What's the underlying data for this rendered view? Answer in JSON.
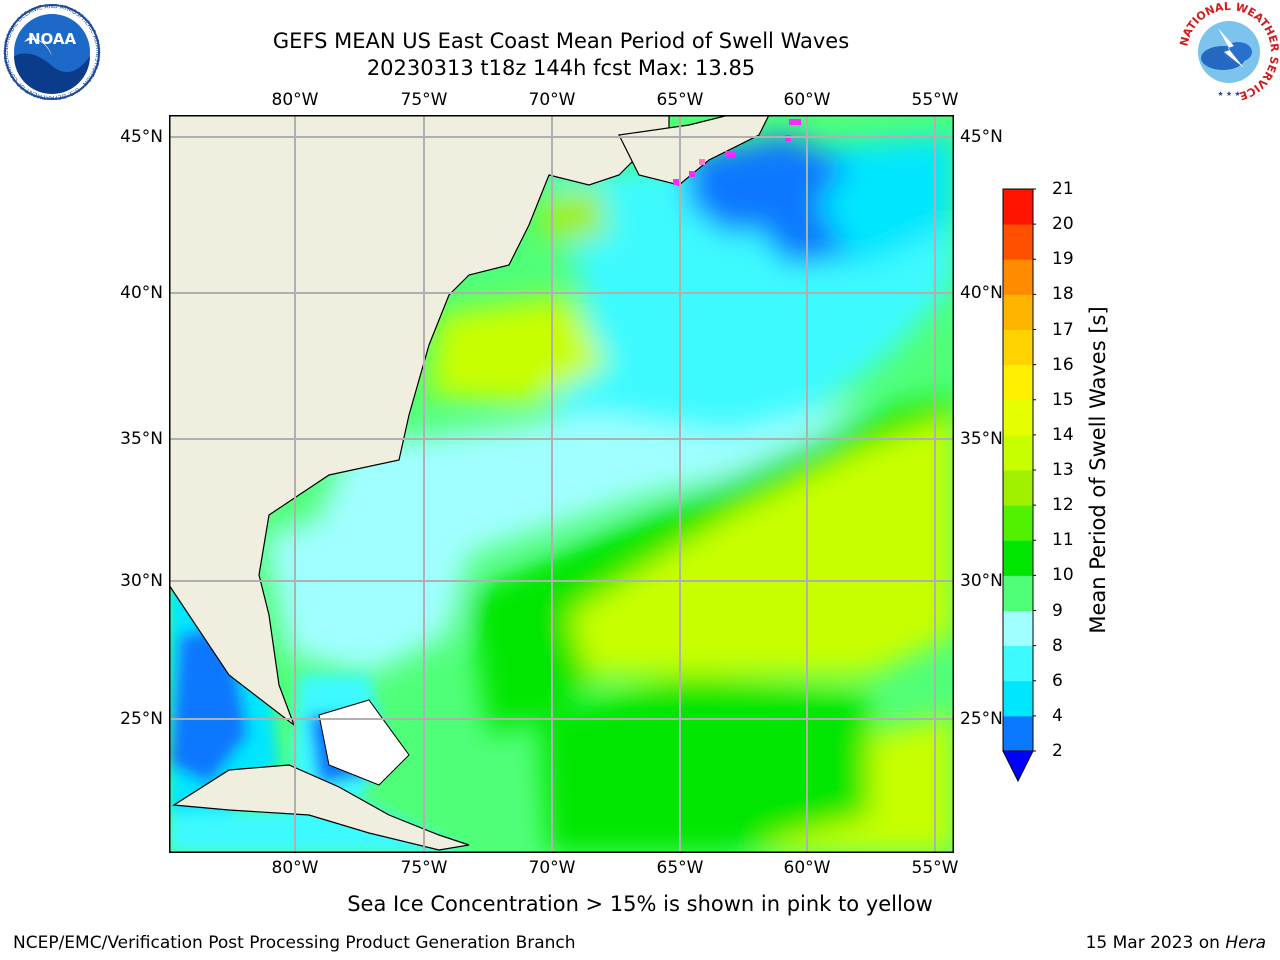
{
  "header": {
    "title_line1": "GEFS MEAN US East Coast Mean Period of Swell Waves",
    "title_line2": "20230313 t18z 144h fcst   Max: 13.85"
  },
  "map": {
    "lon_labels": [
      "80°W",
      "75°W",
      "70°W",
      "65°W",
      "60°W",
      "55°W"
    ],
    "lat_labels": [
      "45°N",
      "40°N",
      "35°N",
      "30°N",
      "25°N"
    ],
    "land_color": "#efeedf",
    "grid_color": "#b0b0b0"
  },
  "colorbar": {
    "title": "Mean Period of Swell Waves [s]",
    "ticks": [
      "2",
      "4",
      "6",
      "8",
      "9",
      "10",
      "11",
      "12",
      "13",
      "14",
      "15",
      "16",
      "17",
      "18",
      "19",
      "20",
      "21"
    ],
    "colors": [
      "#0a78ff",
      "#00e6ff",
      "#3cfaff",
      "#a0ffff",
      "#50ff78",
      "#00e600",
      "#50f000",
      "#a0f000",
      "#c8ff00",
      "#e6ff00",
      "#fff000",
      "#ffd200",
      "#ffb400",
      "#ff8c00",
      "#ff5000",
      "#ff1400"
    ],
    "under_color": "#0000ff"
  },
  "note": "Sea Ice Concentration > 15% is shown in pink to yellow",
  "footer": {
    "left": "NCEP/EMC/Verification Post Processing Product Generation Branch",
    "date": "15 Mar 2023 on",
    "host": "Hera"
  },
  "logos": {
    "noaa_text": "NOAA",
    "noaa_ring": "NATIONAL OCEANIC AND ATMOSPHERIC ADMINISTRATION · U.S. DEPARTMENT OF COMMERCE",
    "nws_ring": "NATIONAL WEATHER SERVICE"
  }
}
